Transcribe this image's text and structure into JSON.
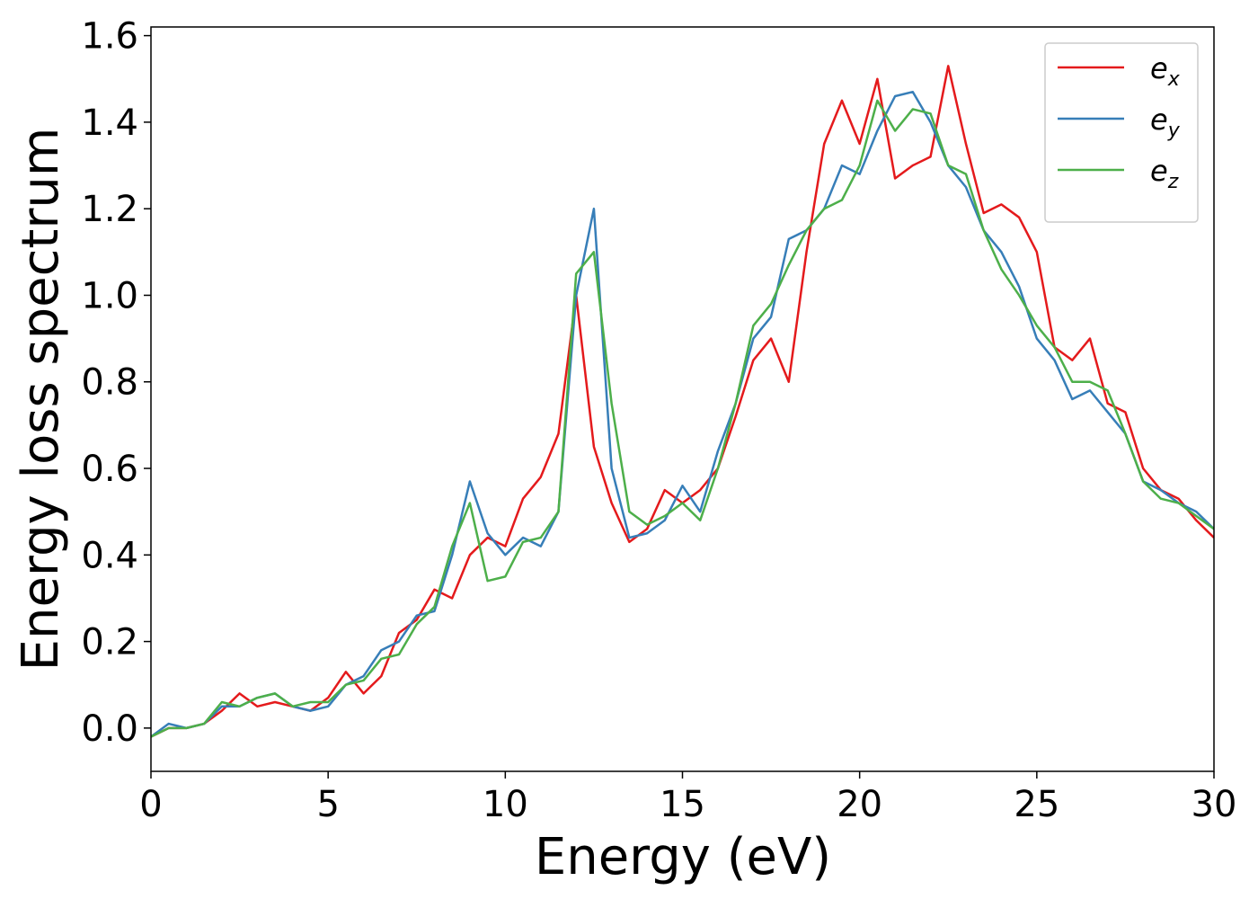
{
  "chart_data": {
    "type": "line",
    "xlabel": "Energy (eV)",
    "ylabel": "Energy loss spectrum",
    "x": [
      0,
      0.5,
      1,
      1.5,
      2,
      2.5,
      3,
      3.5,
      4,
      4.5,
      5,
      5.5,
      6,
      6.5,
      7,
      7.5,
      8,
      8.5,
      9,
      9.5,
      10,
      10.5,
      11,
      11.5,
      12,
      12.5,
      13,
      13.5,
      14,
      14.5,
      15,
      15.5,
      16,
      16.5,
      17,
      17.5,
      18,
      18.5,
      19,
      19.5,
      20,
      20.5,
      21,
      21.5,
      22,
      22.5,
      23,
      23.5,
      24,
      24.5,
      25,
      25.5,
      26,
      26.5,
      27,
      27.5,
      28,
      28.5,
      29,
      29.5,
      30
    ],
    "series": [
      {
        "name": "ex",
        "color": "#e41a1c",
        "values": [
          -0.02,
          0.0,
          0.0,
          0.01,
          0.04,
          0.08,
          0.05,
          0.06,
          0.05,
          0.04,
          0.07,
          0.13,
          0.08,
          0.12,
          0.22,
          0.25,
          0.32,
          0.3,
          0.4,
          0.44,
          0.42,
          0.53,
          0.58,
          0.68,
          1.0,
          0.65,
          0.52,
          0.43,
          0.46,
          0.55,
          0.52,
          0.55,
          0.6,
          0.72,
          0.85,
          0.9,
          0.8,
          1.1,
          1.35,
          1.45,
          1.35,
          1.5,
          1.27,
          1.3,
          1.32,
          1.53,
          1.35,
          1.19,
          1.21,
          1.18,
          1.1,
          0.88,
          0.85,
          0.9,
          0.75,
          0.73,
          0.6,
          0.55,
          0.53,
          0.48,
          0.44
        ]
      },
      {
        "name": "ey",
        "color": "#377eb8",
        "values": [
          -0.02,
          0.01,
          0.0,
          0.01,
          0.05,
          0.05,
          0.07,
          0.08,
          0.05,
          0.04,
          0.05,
          0.1,
          0.12,
          0.18,
          0.2,
          0.26,
          0.27,
          0.4,
          0.57,
          0.45,
          0.4,
          0.44,
          0.42,
          0.5,
          1.0,
          1.2,
          0.6,
          0.44,
          0.45,
          0.48,
          0.56,
          0.5,
          0.64,
          0.75,
          0.9,
          0.95,
          1.13,
          1.15,
          1.2,
          1.3,
          1.28,
          1.38,
          1.46,
          1.47,
          1.4,
          1.3,
          1.25,
          1.15,
          1.1,
          1.02,
          0.9,
          0.85,
          0.76,
          0.78,
          0.73,
          0.68,
          0.57,
          0.55,
          0.52,
          0.5,
          0.46
        ]
      },
      {
        "name": "ez",
        "color": "#4daf4a",
        "values": [
          -0.02,
          0.0,
          0.0,
          0.01,
          0.06,
          0.05,
          0.07,
          0.08,
          0.05,
          0.06,
          0.06,
          0.1,
          0.11,
          0.16,
          0.17,
          0.24,
          0.28,
          0.42,
          0.52,
          0.34,
          0.35,
          0.43,
          0.44,
          0.5,
          1.05,
          1.1,
          0.75,
          0.5,
          0.47,
          0.49,
          0.52,
          0.48,
          0.6,
          0.75,
          0.93,
          0.98,
          1.07,
          1.15,
          1.2,
          1.22,
          1.3,
          1.45,
          1.38,
          1.43,
          1.42,
          1.3,
          1.28,
          1.15,
          1.06,
          1.0,
          0.93,
          0.88,
          0.8,
          0.8,
          0.78,
          0.68,
          0.57,
          0.53,
          0.52,
          0.49,
          0.46
        ]
      }
    ],
    "xlim": [
      0,
      30
    ],
    "xticks": [
      0,
      5,
      10,
      15,
      20,
      25,
      30
    ],
    "ylim": [
      -0.1,
      1.62
    ],
    "yticks": [
      {
        "value": 0,
        "label": "0.0"
      },
      0.2,
      0.4,
      0.6,
      0.8,
      {
        "value": 1,
        "label": "1.0"
      },
      1.2,
      1.4,
      1.6
    ],
    "grid": false,
    "legend": "upper right"
  }
}
